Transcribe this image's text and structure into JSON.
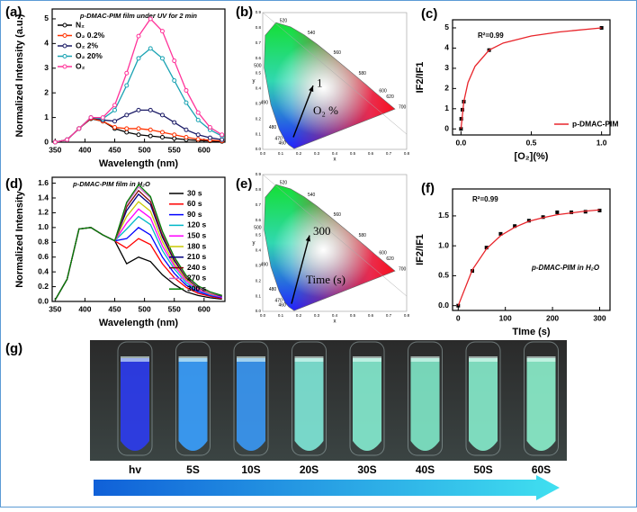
{
  "chart_data": [
    {
      "type": "line",
      "panel": "(a)",
      "title": "p-DMAC-PIM film under UV for 2 min",
      "x_label": "Wavelength (nm)",
      "y_label": "Normalized Intensity (a.u.)",
      "xlim": [
        345,
        635
      ],
      "ylim": [
        0,
        5.4
      ],
      "xticks": [
        350,
        400,
        450,
        500,
        550,
        600
      ],
      "yticks": [
        0,
        1,
        2,
        3,
        4,
        5
      ],
      "legend": "upper left",
      "marker": "open-circle",
      "x": [
        350,
        370,
        390,
        410,
        430,
        450,
        470,
        490,
        510,
        530,
        550,
        570,
        590,
        610,
        630
      ],
      "series": [
        {
          "name": "N₂",
          "color": "#000000",
          "values": [
            0,
            0.1,
            0.55,
            0.95,
            0.85,
            0.55,
            0.4,
            0.3,
            0.25,
            0.2,
            0.15,
            0.1,
            0.07,
            0.05,
            0.03
          ]
        },
        {
          "name": "O₂ 0.2%",
          "color": "#ff3300",
          "values": [
            0,
            0.1,
            0.55,
            0.97,
            0.85,
            0.6,
            0.55,
            0.55,
            0.5,
            0.4,
            0.3,
            0.2,
            0.12,
            0.08,
            0.05
          ]
        },
        {
          "name": "O₂ 2%",
          "color": "#1a1a66",
          "values": [
            0,
            0.1,
            0.55,
            1.0,
            0.9,
            0.85,
            1.1,
            1.3,
            1.3,
            1.1,
            0.8,
            0.5,
            0.3,
            0.18,
            0.1
          ]
        },
        {
          "name": "O₂ 20%",
          "color": "#1aa3b3",
          "values": [
            0,
            0.1,
            0.55,
            1.0,
            0.95,
            1.3,
            2.3,
            3.4,
            3.8,
            3.4,
            2.5,
            1.6,
            0.9,
            0.5,
            0.25
          ]
        },
        {
          "name": "O₂",
          "color": "#ff3399",
          "values": [
            0,
            0.1,
            0.55,
            1.0,
            1.0,
            1.5,
            2.8,
            4.3,
            5.0,
            4.5,
            3.3,
            2.1,
            1.2,
            0.6,
            0.3
          ]
        }
      ]
    },
    {
      "type": "scatter",
      "panel": "(c)",
      "x_label": "[O₂](%)",
      "y_label": "IF2/IF1",
      "xlim": [
        -0.06,
        1.06
      ],
      "ylim": [
        -0.3,
        5.4
      ],
      "xticks": [
        {
          "value": 0,
          "label": "0.0"
        },
        {
          "value": 0.5,
          "label": "0.5"
        },
        {
          "value": 1,
          "label": "1.0"
        }
      ],
      "yticks": [
        0,
        1,
        2,
        3,
        4,
        5
      ],
      "legend": "lower right",
      "annotations": [
        "R²=0.99"
      ],
      "series": [
        {
          "color": "#000000",
          "marker": "square",
          "x": [
            0,
            0.002,
            0.01,
            0.02,
            0.2,
            1.0
          ],
          "values": [
            0,
            0.5,
            0.95,
            1.35,
            3.9,
            5.0
          ]
        },
        {
          "name": "p-DMAC-PIM",
          "color": "#e8242a",
          "style": "line",
          "x": [
            0,
            0.02,
            0.05,
            0.1,
            0.2,
            0.3,
            0.5,
            0.7,
            1.0
          ],
          "values": [
            0,
            1.35,
            2.3,
            3.1,
            3.9,
            4.25,
            4.6,
            4.8,
            5.0
          ]
        }
      ]
    },
    {
      "type": "line",
      "panel": "(d)",
      "title": "p-DMAC-PIM film in H₂O",
      "x_label": "Wavelength (nm)",
      "y_label": "Normalized Intensity",
      "xlim": [
        345,
        635
      ],
      "ylim": [
        0,
        1.68
      ],
      "xticks": [
        350,
        400,
        450,
        500,
        550,
        600
      ],
      "yticks": [
        {
          "value": 0,
          "label": "0.0"
        },
        0.2,
        0.4,
        0.6,
        0.8,
        {
          "value": 1,
          "label": "1.0"
        },
        1.2,
        1.4,
        1.6
      ],
      "legend": "upper right",
      "x": [
        350,
        370,
        390,
        410,
        430,
        450,
        470,
        490,
        510,
        530,
        550,
        570,
        590,
        610,
        630
      ],
      "series": [
        {
          "name": "30 s",
          "color": "#000000",
          "values": [
            0.02,
            0.3,
            0.98,
            1.0,
            0.9,
            0.82,
            0.51,
            0.6,
            0.54,
            0.36,
            0.23,
            0.13,
            0.08,
            0.05,
            0.03
          ]
        },
        {
          "name": "60 s",
          "color": "#ff0000",
          "values": [
            0.02,
            0.3,
            0.98,
            1.0,
            0.9,
            0.82,
            0.72,
            0.85,
            0.77,
            0.51,
            0.32,
            0.19,
            0.11,
            0.07,
            0.04
          ]
        },
        {
          "name": "90 s",
          "color": "#0000ff",
          "values": [
            0.02,
            0.3,
            0.98,
            1.0,
            0.9,
            0.82,
            0.85,
            1.0,
            0.9,
            0.6,
            0.38,
            0.22,
            0.13,
            0.08,
            0.05
          ]
        },
        {
          "name": "120 s",
          "color": "#00b8c8",
          "values": [
            0.02,
            0.3,
            0.98,
            1.0,
            0.9,
            0.82,
            0.98,
            1.15,
            1.04,
            0.69,
            0.44,
            0.25,
            0.15,
            0.09,
            0.06
          ]
        },
        {
          "name": "150 s",
          "color": "#ff00ff",
          "values": [
            0.02,
            0.3,
            0.98,
            1.0,
            0.9,
            0.82,
            1.06,
            1.25,
            1.13,
            0.75,
            0.48,
            0.28,
            0.16,
            0.1,
            0.06
          ]
        },
        {
          "name": "180 s",
          "color": "#c8c800",
          "values": [
            0.02,
            0.3,
            0.98,
            1.0,
            0.9,
            0.82,
            1.15,
            1.35,
            1.22,
            0.81,
            0.51,
            0.3,
            0.18,
            0.11,
            0.07
          ]
        },
        {
          "name": "210 s",
          "color": "#000080",
          "values": [
            0.02,
            0.3,
            0.98,
            1.0,
            0.9,
            0.82,
            1.23,
            1.45,
            1.31,
            0.87,
            0.55,
            0.32,
            0.19,
            0.12,
            0.07
          ]
        },
        {
          "name": "240 s",
          "color": "#800000",
          "values": [
            0.02,
            0.3,
            0.98,
            1.0,
            0.9,
            0.82,
            1.28,
            1.5,
            1.35,
            0.9,
            0.57,
            0.33,
            0.2,
            0.12,
            0.08
          ]
        },
        {
          "name": "270 s",
          "color": "#cc66cc",
          "values": [
            0.02,
            0.3,
            0.98,
            1.0,
            0.9,
            0.82,
            1.32,
            1.55,
            1.4,
            0.93,
            0.59,
            0.34,
            0.2,
            0.12,
            0.08
          ]
        },
        {
          "name": "300 s",
          "color": "#008000",
          "values": [
            0.02,
            0.3,
            0.98,
            1.0,
            0.9,
            0.82,
            1.34,
            1.58,
            1.42,
            0.95,
            0.6,
            0.35,
            0.21,
            0.13,
            0.08
          ]
        }
      ]
    },
    {
      "type": "scatter",
      "panel": "(f)",
      "x_label": "TIme (s)",
      "y_label": "IF2/IF1",
      "xlim": [
        -12,
        322
      ],
      "ylim": [
        -0.08,
        1.95
      ],
      "xticks": [
        0,
        100,
        200,
        300
      ],
      "yticks": [
        {
          "value": 0,
          "label": "0.0"
        },
        0.5,
        {
          "value": 1,
          "label": "1.0"
        },
        1.5
      ],
      "annotations": [
        "R²=0.99",
        "p-DMAC-PIM in H₂O"
      ],
      "series": [
        {
          "color": "#000000",
          "marker": "square",
          "x": [
            0,
            30,
            60,
            90,
            120,
            150,
            180,
            210,
            240,
            270,
            300
          ],
          "values": [
            0,
            0.58,
            0.97,
            1.2,
            1.33,
            1.42,
            1.48,
            1.56,
            1.56,
            1.57,
            1.59
          ]
        },
        {
          "color": "#e8242a",
          "style": "line",
          "x": [
            0,
            30,
            60,
            90,
            120,
            150,
            180,
            210,
            240,
            270,
            300
          ],
          "values": [
            0,
            0.6,
            0.95,
            1.17,
            1.31,
            1.41,
            1.47,
            1.52,
            1.55,
            1.58,
            1.6
          ]
        }
      ]
    }
  ],
  "cie": [
    {
      "panel": "(b)",
      "wavelength_labels": [
        "520",
        "540",
        "560",
        "580",
        "600",
        "620",
        "700",
        "500",
        "490",
        "480",
        "470",
        "460"
      ],
      "x_ticks": [
        "0.0",
        "0.1",
        "0.2",
        "0.3",
        "0.4",
        "0.5",
        "0.6",
        "0.7",
        "0.8"
      ],
      "y_ticks": [
        "0.0",
        "0.1",
        "0.2",
        "0.3",
        "0.4",
        "0.5",
        "0.6",
        "0.7",
        "0.8",
        "0.9"
      ],
      "x_axis": "x",
      "y_axis": "y",
      "annotations": [
        "1",
        "O₂ %"
      ]
    },
    {
      "panel": "(e)",
      "wavelength_labels": [
        "520",
        "540",
        "560",
        "580",
        "600",
        "620",
        "700",
        "500",
        "490",
        "480",
        "470",
        "460"
      ],
      "x_ticks": [
        "0.0",
        "0.1",
        "0.2",
        "0.3",
        "0.4",
        "0.5",
        "0.6",
        "0.7",
        "0.8"
      ],
      "y_ticks": [
        "0.0",
        "0.1",
        "0.2",
        "0.3",
        "0.4",
        "0.5",
        "0.6",
        "0.7",
        "0.8",
        "0.9"
      ],
      "x_axis": "x",
      "y_axis": "y",
      "annotations": [
        "300",
        "Time (s)"
      ]
    }
  ],
  "photo": {
    "panel": "(g)",
    "labels": [
      "hv",
      "5S",
      "10S",
      "20S",
      "30S",
      "40S",
      "50S",
      "60S"
    ]
  }
}
